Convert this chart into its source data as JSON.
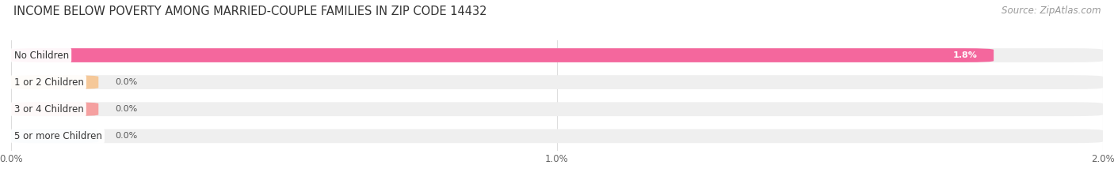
{
  "title": "INCOME BELOW POVERTY AMONG MARRIED-COUPLE FAMILIES IN ZIP CODE 14432",
  "source": "Source: ZipAtlas.com",
  "categories": [
    "No Children",
    "1 or 2 Children",
    "3 or 4 Children",
    "5 or more Children"
  ],
  "values": [
    1.8,
    0.0,
    0.0,
    0.0
  ],
  "bar_colors": [
    "#F4679D",
    "#F5C899",
    "#F5A0A0",
    "#A8C8E8"
  ],
  "bar_bg_color": "#EFEFEF",
  "xlim": [
    0,
    2.0
  ],
  "xticks": [
    0.0,
    1.0,
    2.0
  ],
  "xtick_labels": [
    "0.0%",
    "1.0%",
    "2.0%"
  ],
  "value_labels": [
    "1.8%",
    "0.0%",
    "0.0%",
    "0.0%"
  ],
  "title_fontsize": 10.5,
  "source_fontsize": 8.5,
  "label_fontsize": 8.5,
  "value_fontsize": 8.0,
  "tick_fontsize": 8.5,
  "background_color": "#FFFFFF",
  "grid_color": "#DDDDDD"
}
